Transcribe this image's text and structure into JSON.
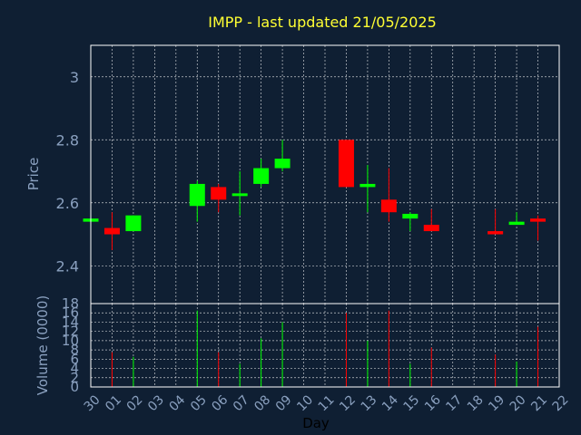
{
  "chart_data": {
    "type": "candlestick",
    "title": "IMPP - last updated 21/05/2025",
    "xlabel": "Day",
    "ylabel": "Price",
    "volume_label": "Volume (0000)",
    "x_ticks": [
      "30",
      "01",
      "02",
      "03",
      "04",
      "05",
      "06",
      "07",
      "08",
      "09",
      "10",
      "11",
      "12",
      "13",
      "14",
      "15",
      "16",
      "17",
      "18",
      "19",
      "20",
      "21",
      "22"
    ],
    "price_ticks": [
      2.4,
      2.6,
      2.8,
      3
    ],
    "price_ylim": [
      2.28,
      3.1
    ],
    "volume_ticks": [
      0,
      2,
      4,
      6,
      8,
      10,
      12,
      14,
      16,
      18
    ],
    "volume_ylim": [
      0,
      18
    ],
    "grid": true,
    "up_color": "#00ff00",
    "down_color": "#ff0000",
    "candles": [
      {
        "x": 0,
        "open": 2.54,
        "close": 2.55,
        "high": 2.55,
        "low": 2.54,
        "volume": 0
      },
      {
        "x": 1,
        "open": 2.52,
        "close": 2.5,
        "high": 2.57,
        "low": 2.45,
        "volume": 7.5
      },
      {
        "x": 2,
        "open": 2.51,
        "close": 2.56,
        "high": 2.56,
        "low": 2.51,
        "volume": 6.5
      },
      {
        "x": 5,
        "open": 2.59,
        "close": 2.66,
        "high": 2.67,
        "low": 2.54,
        "volume": 16.5
      },
      {
        "x": 6,
        "open": 2.65,
        "close": 2.61,
        "high": 2.66,
        "low": 2.57,
        "volume": 7.5
      },
      {
        "x": 7,
        "open": 2.625,
        "close": 2.63,
        "high": 2.7,
        "low": 2.56,
        "volume": 5
      },
      {
        "x": 8,
        "open": 2.66,
        "close": 2.71,
        "high": 2.74,
        "low": 2.65,
        "volume": 10.5
      },
      {
        "x": 9,
        "open": 2.71,
        "close": 2.74,
        "high": 2.8,
        "low": 2.7,
        "volume": 14
      },
      {
        "x": 12,
        "open": 2.8,
        "close": 2.65,
        "high": 2.8,
        "low": 2.65,
        "volume": 16
      },
      {
        "x": 13,
        "open": 2.65,
        "close": 2.66,
        "high": 2.72,
        "low": 2.57,
        "volume": 10
      },
      {
        "x": 14,
        "open": 2.61,
        "close": 2.57,
        "high": 2.71,
        "low": 2.54,
        "volume": 16.5
      },
      {
        "x": 15,
        "open": 2.55,
        "close": 2.565,
        "high": 2.57,
        "low": 2.51,
        "volume": 5
      },
      {
        "x": 16,
        "open": 2.53,
        "close": 2.51,
        "high": 2.58,
        "low": 2.51,
        "volume": 8.5
      },
      {
        "x": 19,
        "open": 2.51,
        "close": 2.5,
        "high": 2.58,
        "low": 2.5,
        "volume": 7
      },
      {
        "x": 20,
        "open": 2.53,
        "close": 2.54,
        "high": 2.57,
        "low": 2.53,
        "volume": 5.5
      },
      {
        "x": 21,
        "open": 2.55,
        "close": 2.54,
        "high": 2.56,
        "low": 2.48,
        "volume": 13
      }
    ]
  }
}
